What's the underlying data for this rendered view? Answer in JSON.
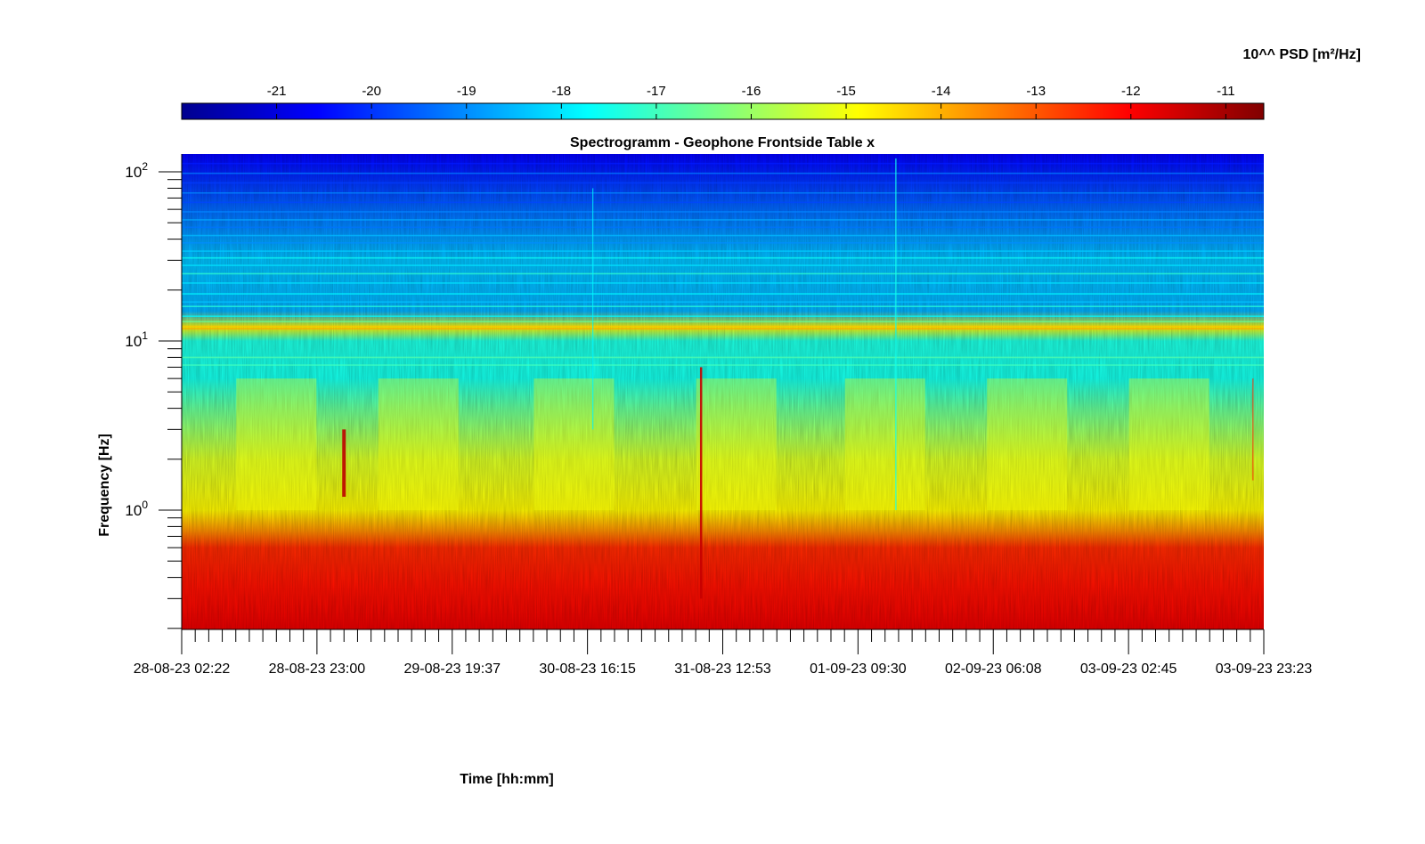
{
  "chart_data": {
    "type": "heatmap",
    "title": "Spectrogramm - Geophone Frontside Table x",
    "xlabel": "Time [hh:mm]",
    "ylabel": "Frequency [Hz]",
    "y_scale": "log",
    "ylim_hz": [
      0.2,
      125
    ],
    "y_ticks": [
      {
        "value": 1,
        "base": "10",
        "exp": "0"
      },
      {
        "value": 10,
        "base": "10",
        "exp": "1"
      },
      {
        "value": 100,
        "base": "10",
        "exp": "2"
      }
    ],
    "x_ticks": [
      "28-08-23 02:22",
      "28-08-23 23:00",
      "29-08-23 19:37",
      "30-08-23 16:15",
      "31-08-23 12:53",
      "01-09-23 09:30",
      "02-09-23 06:08",
      "03-09-23 02:45",
      "03-09-23 23:23"
    ],
    "colorbar": {
      "label": "10^^ PSD [m²/Hz]",
      "range": [
        -22,
        -10.6
      ],
      "ticks": [
        "-21",
        "-20",
        "-19",
        "-18",
        "-17",
        "-16",
        "-15",
        "-14",
        "-13",
        "-12",
        "-11"
      ],
      "colormap": "jet"
    },
    "psd_profile_log10": [
      {
        "f": 0.2,
        "v": -11.8
      },
      {
        "f": 0.35,
        "v": -12.2
      },
      {
        "f": 0.6,
        "v": -12.5
      },
      {
        "f": 0.75,
        "v": -13.6
      },
      {
        "f": 1.0,
        "v": -14.8
      },
      {
        "f": 2.0,
        "v": -15.3
      },
      {
        "f": 4.0,
        "v": -16.6
      },
      {
        "f": 6.0,
        "v": -17.5
      },
      {
        "f": 10.0,
        "v": -17.4
      },
      {
        "f": 12.0,
        "v": -14.8
      },
      {
        "f": 15.0,
        "v": -18.6
      },
      {
        "f": 30.0,
        "v": -18.4
      },
      {
        "f": 60.0,
        "v": -19.4
      },
      {
        "f": 125.0,
        "v": -20.6
      }
    ],
    "grid": false,
    "legend": "colorbar top"
  }
}
